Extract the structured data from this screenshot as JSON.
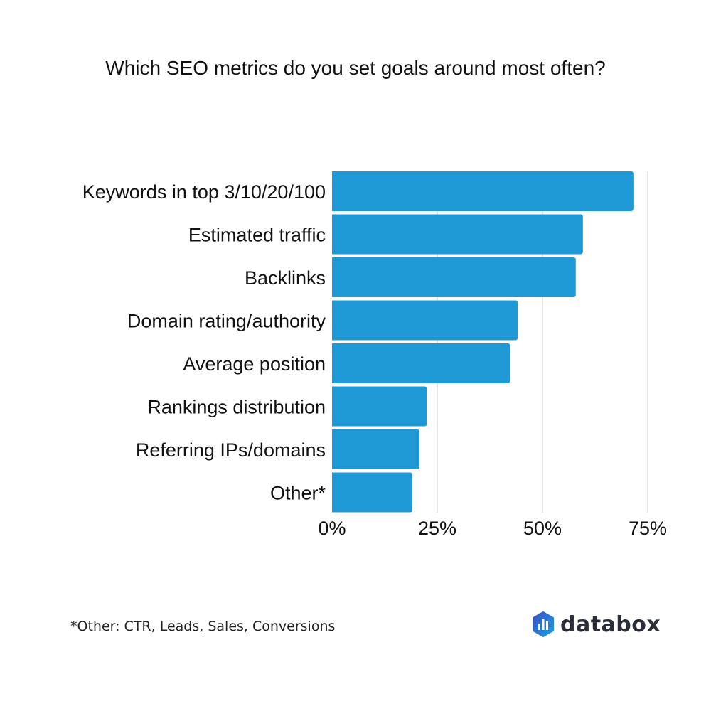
{
  "chart_data": {
    "type": "bar",
    "orientation": "horizontal",
    "title": "Which SEO metrics do you set goals around most often?",
    "categories": [
      "Keywords in top 3/10/20/100",
      "Estimated traffic",
      "Backlinks",
      "Domain rating/authority",
      "Average position",
      "Rankings distribution",
      "Referring IPs/domains",
      "Other*"
    ],
    "values": [
      71.6,
      59.6,
      57.9,
      44.1,
      42.3,
      22.5,
      20.8,
      19.1
    ],
    "xlim": [
      0,
      75
    ],
    "xticks": [
      0,
      25,
      50,
      75
    ],
    "xtick_labels": [
      "0%",
      "25%",
      "50%",
      "75%"
    ],
    "xlabel": "",
    "ylabel": "",
    "grid": true,
    "bar_color": "#1e99d6",
    "grid_color": "#cccccc"
  },
  "footnote": "*Other: CTR, Leads, Sales, Conversions",
  "logo": {
    "text": "databox",
    "icon": "databox-logo-icon"
  }
}
